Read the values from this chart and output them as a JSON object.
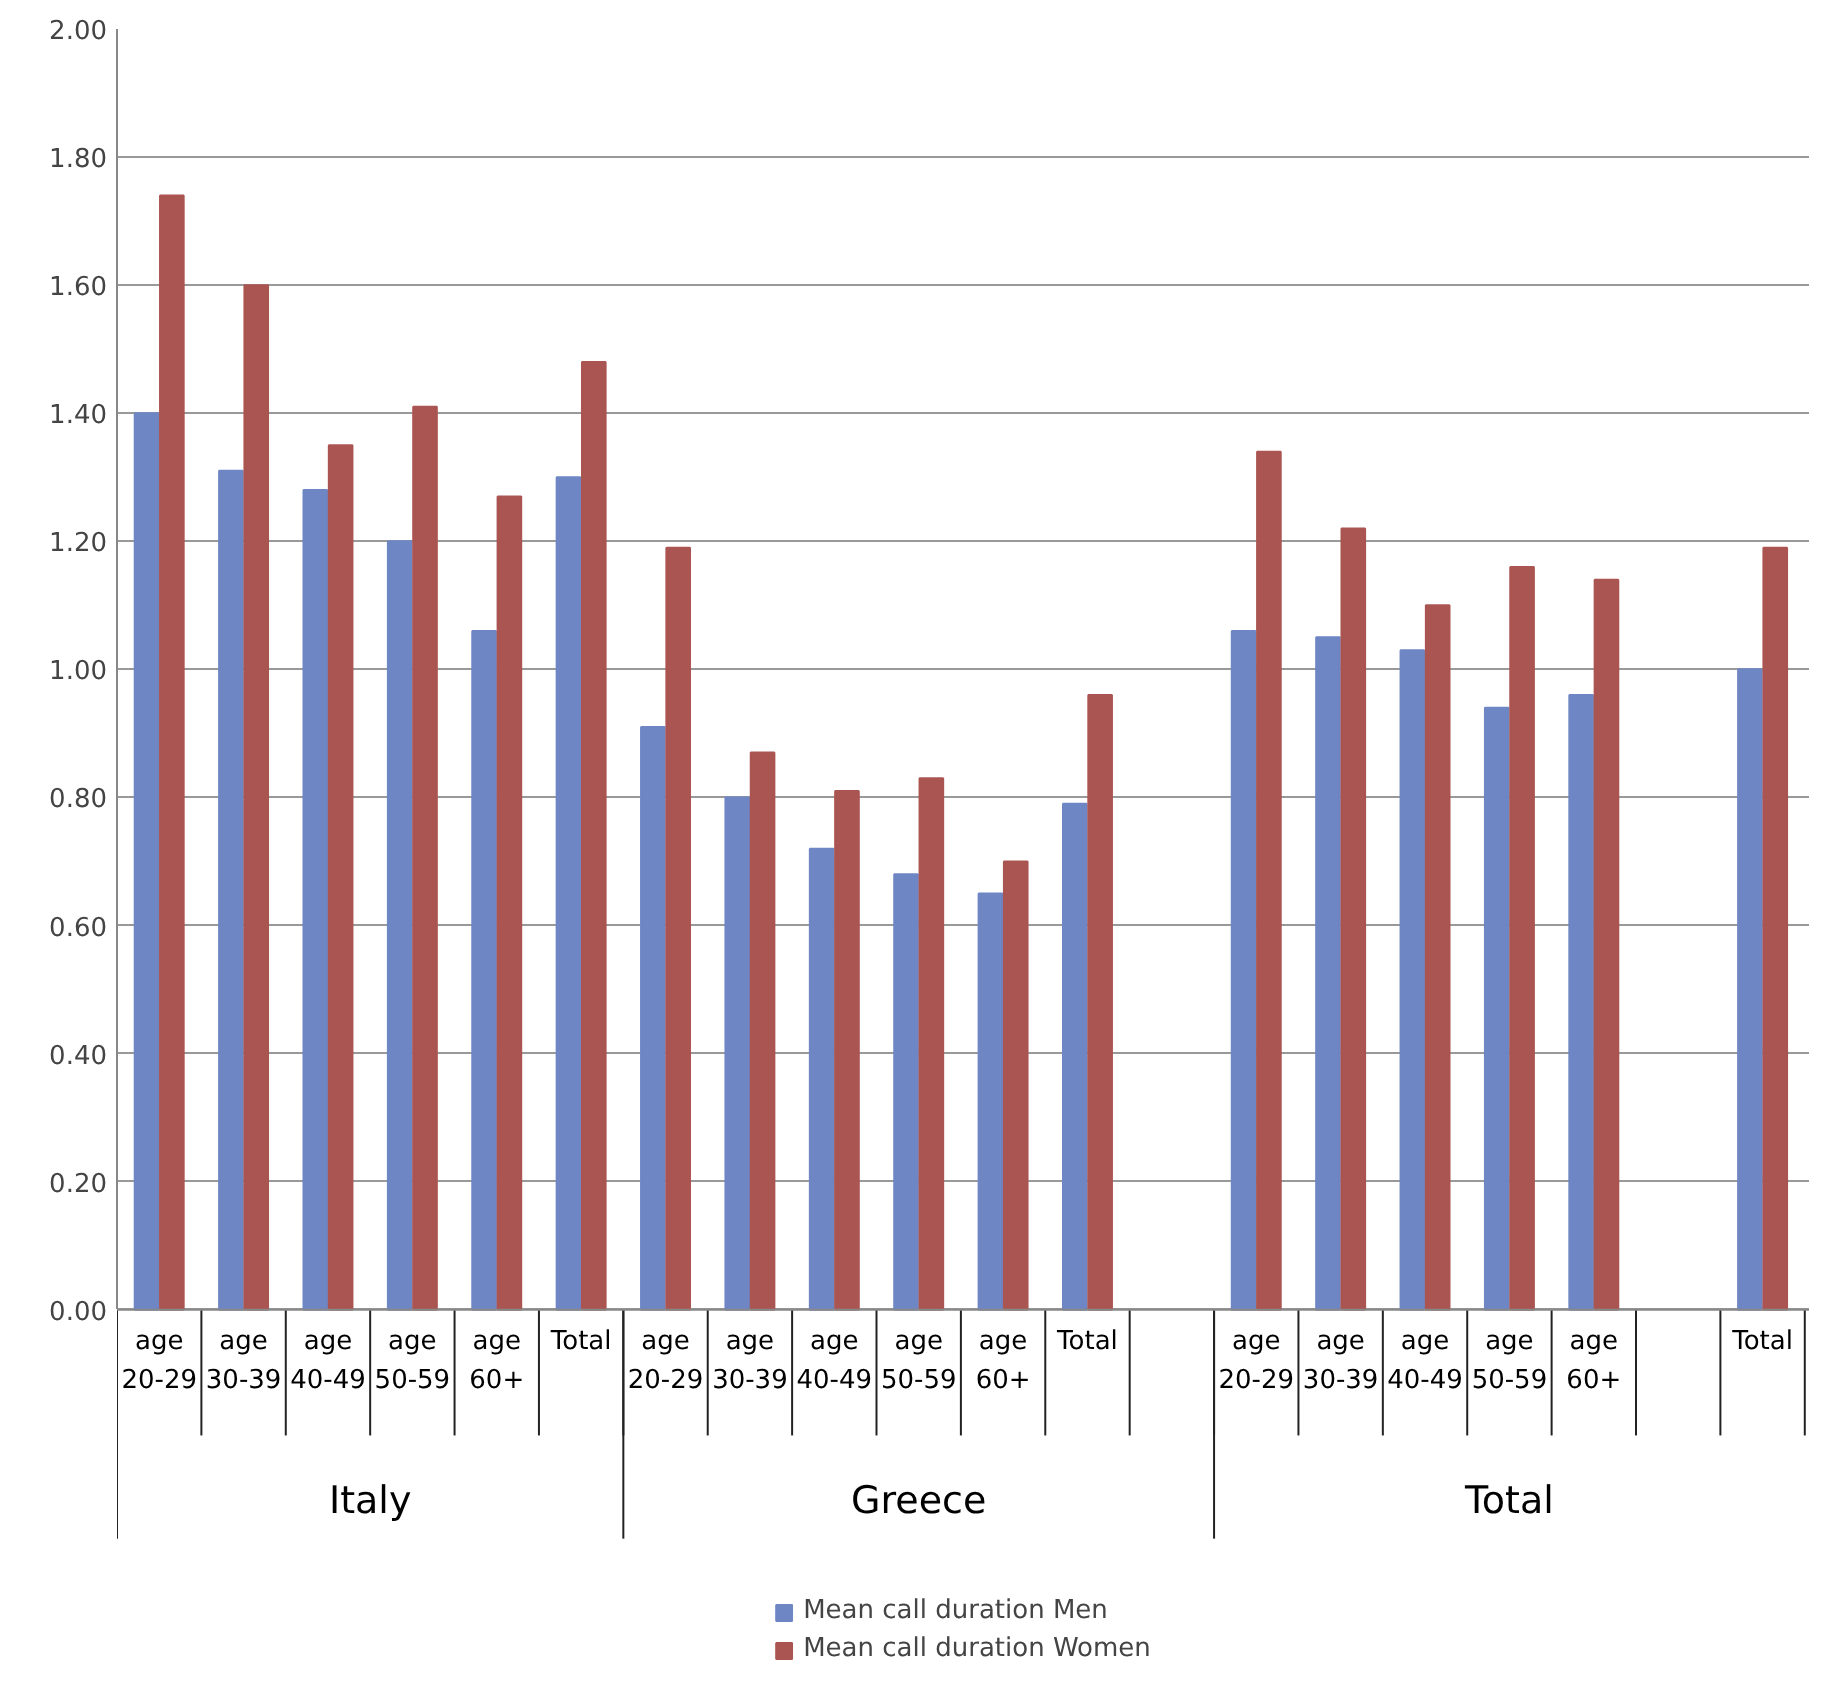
{
  "chart_data": {
    "type": "bar",
    "categories": [
      "age 20-29",
      "age 30-39",
      "age 40-49",
      "age 50-59",
      "age 60+",
      "Total",
      "age 20-29",
      "age 30-39",
      "age 40-49",
      "age 50-59",
      "age 60+",
      "Total",
      null,
      "age 20-29",
      "age 30-39",
      "age 40-49",
      "age 50-59",
      "age 60+",
      null,
      "Total"
    ],
    "series": [
      {
        "name": "Mean call duration Men",
        "color": "#6f86c4",
        "values": [
          1.4,
          1.31,
          1.28,
          1.2,
          1.06,
          1.3,
          0.91,
          0.8,
          0.72,
          0.68,
          0.65,
          0.79,
          null,
          1.06,
          1.05,
          1.03,
          0.94,
          0.96,
          null,
          1.0
        ]
      },
      {
        "name": "Mean call duration Women",
        "color": "#aa5551",
        "values": [
          1.74,
          1.6,
          1.35,
          1.41,
          1.27,
          1.48,
          1.19,
          0.87,
          0.81,
          0.83,
          0.7,
          0.96,
          null,
          1.34,
          1.22,
          1.1,
          1.16,
          1.14,
          null,
          1.19
        ]
      }
    ],
    "annotations": [
      "Italy",
      "Greece",
      "Total"
    ],
    "ylim": [
      0,
      2
    ],
    "yticks": [
      {
        "value": 0,
        "label": "0.00"
      },
      {
        "value": 0.2,
        "label": "0.20"
      },
      {
        "value": 0.4,
        "label": "0.40"
      },
      {
        "value": 0.6,
        "label": "0.60"
      },
      {
        "value": 0.8,
        "label": "0.80"
      },
      {
        "value": 1,
        "label": "1.00"
      },
      {
        "value": 1.2,
        "label": "1.20"
      },
      {
        "value": 1.4,
        "label": "1.40"
      },
      {
        "value": 1.6,
        "label": "1.60"
      },
      {
        "value": 1.8,
        "label": "1.80"
      },
      {
        "value": 2,
        "label": "2.00"
      }
    ],
    "grid": "y",
    "legend": "bottom"
  }
}
